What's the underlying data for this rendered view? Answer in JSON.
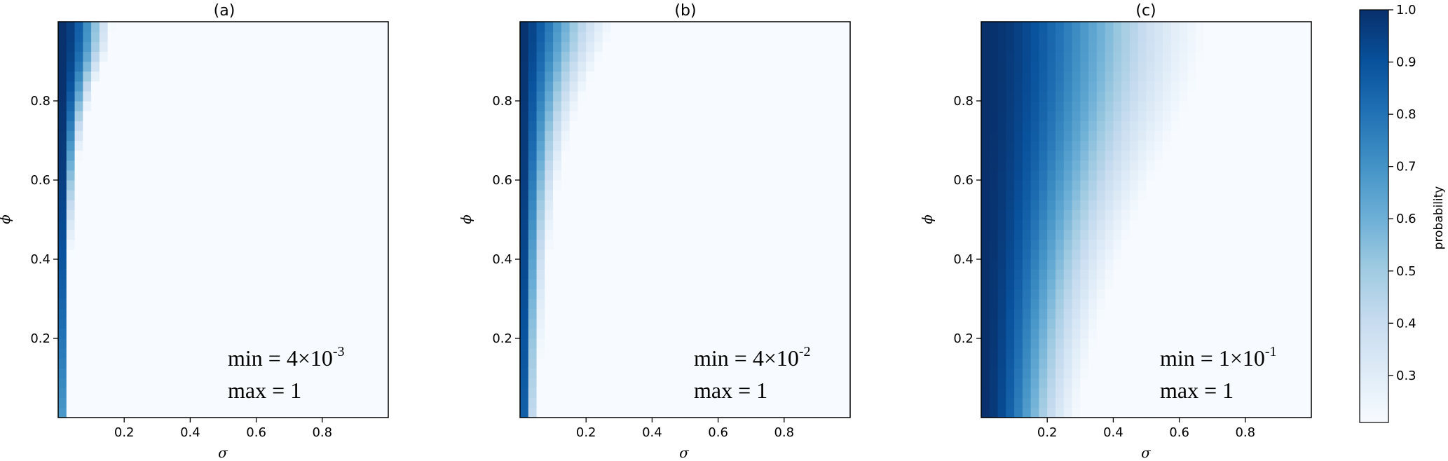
{
  "chart_data": {
    "type": "heatmap",
    "panels": [
      {
        "title": "(a)",
        "xlabel": "σ",
        "ylabel": "ϕ",
        "xticks": [
          "0.2",
          "0.4",
          "0.6",
          "0.8"
        ],
        "yticks": [
          "0.2",
          "0.4",
          "0.6",
          "0.8"
        ],
        "xlim": [
          0,
          1
        ],
        "ylim": [
          0,
          1
        ],
        "value_model": {
          "A": 120,
          "B": 120,
          "p": 2.4,
          "floor": 0.004,
          "fade": 0.0
        },
        "annotation": {
          "min_prefix": "min = 4×10",
          "min_exp": "-3",
          "max_text": "max = 1"
        }
      },
      {
        "title": "(b)",
        "xlabel": "σ",
        "ylabel": "ϕ",
        "xticks": [
          "0.2",
          "0.4",
          "0.6",
          "0.8"
        ],
        "yticks": [
          "0.2",
          "0.4",
          "0.6",
          "0.8"
        ],
        "xlim": [
          0,
          1
        ],
        "ylim": [
          0,
          1
        ],
        "value_model": {
          "A": 13,
          "B": 13,
          "p": 1.6,
          "floor": 0.04,
          "fade": 1.2
        },
        "annotation": {
          "min_prefix": "min = 4×10",
          "min_exp": "-2",
          "max_text": "max = 1"
        }
      },
      {
        "title": "(c)",
        "xlabel": "σ",
        "ylabel": "ϕ",
        "xticks": [
          "0.2",
          "0.4",
          "0.6",
          "0.8"
        ],
        "yticks": [
          "0.2",
          "0.4",
          "0.6",
          "0.8"
        ],
        "xlim": [
          0,
          1
        ],
        "ylim": [
          0,
          1
        ],
        "value_model": {
          "A": 4.5,
          "B": 4.5,
          "p": 2.0,
          "floor": 0.1,
          "fade": 0.35
        },
        "annotation": {
          "min_prefix": "min = 1×10",
          "min_exp": "-1",
          "max_text": "max = 1"
        }
      }
    ],
    "grid": false,
    "colorbar": {
      "label": "probability",
      "ticks": [
        "0.3",
        "0.4",
        "0.5",
        "0.6",
        "0.7",
        "0.8",
        "0.9",
        "1.0"
      ],
      "range": [
        0.21,
        1.0
      ],
      "colormap": "Blues",
      "colormap_stops": [
        "#f7fbff",
        "#deebf7",
        "#c6dbef",
        "#9ecae1",
        "#6baed6",
        "#4292c6",
        "#2171b5",
        "#08519c",
        "#08306b"
      ]
    }
  }
}
